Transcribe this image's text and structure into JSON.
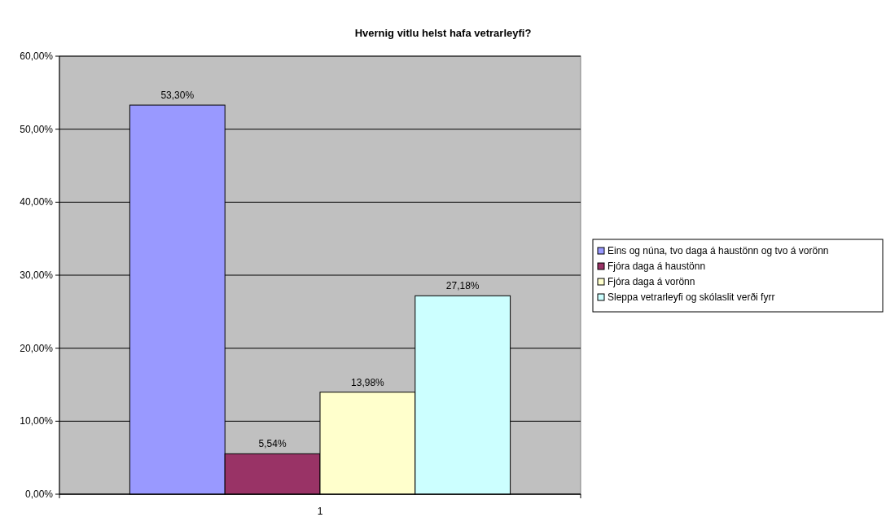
{
  "chart_data": {
    "type": "bar",
    "title": "Hvernig vitlu helst hafa vetrarleyfi?",
    "categories": [
      "1"
    ],
    "series": [
      {
        "name": "Eins og núna, tvo daga á haustönn og tvo á vorönn",
        "color": "#9999ff",
        "values": [
          53.3
        ],
        "value_labels": [
          "53,30%"
        ]
      },
      {
        "name": "Fjóra daga á haustönn",
        "color": "#993366",
        "values": [
          5.54
        ],
        "value_labels": [
          "5,54%"
        ]
      },
      {
        "name": "Fjóra daga á vorönn",
        "color": "#ffffcc",
        "values": [
          13.98
        ],
        "value_labels": [
          "13,98%"
        ]
      },
      {
        "name": "Sleppa vetrarleyfi og skólaslit verði fyrr",
        "color": "#ccffff",
        "values": [
          27.18
        ],
        "value_labels": [
          "27,18%"
        ]
      }
    ],
    "ylim": [
      0,
      60
    ],
    "yticks": [
      {
        "value": 0,
        "label": "0,00%"
      },
      {
        "value": 10,
        "label": "10,00%"
      },
      {
        "value": 20,
        "label": "20,00%"
      },
      {
        "value": 30,
        "label": "30,00%"
      },
      {
        "value": 40,
        "label": "40,00%"
      },
      {
        "value": 50,
        "label": "50,00%"
      },
      {
        "value": 60,
        "label": "60,00%"
      }
    ],
    "grid": "y",
    "legend": "right"
  }
}
